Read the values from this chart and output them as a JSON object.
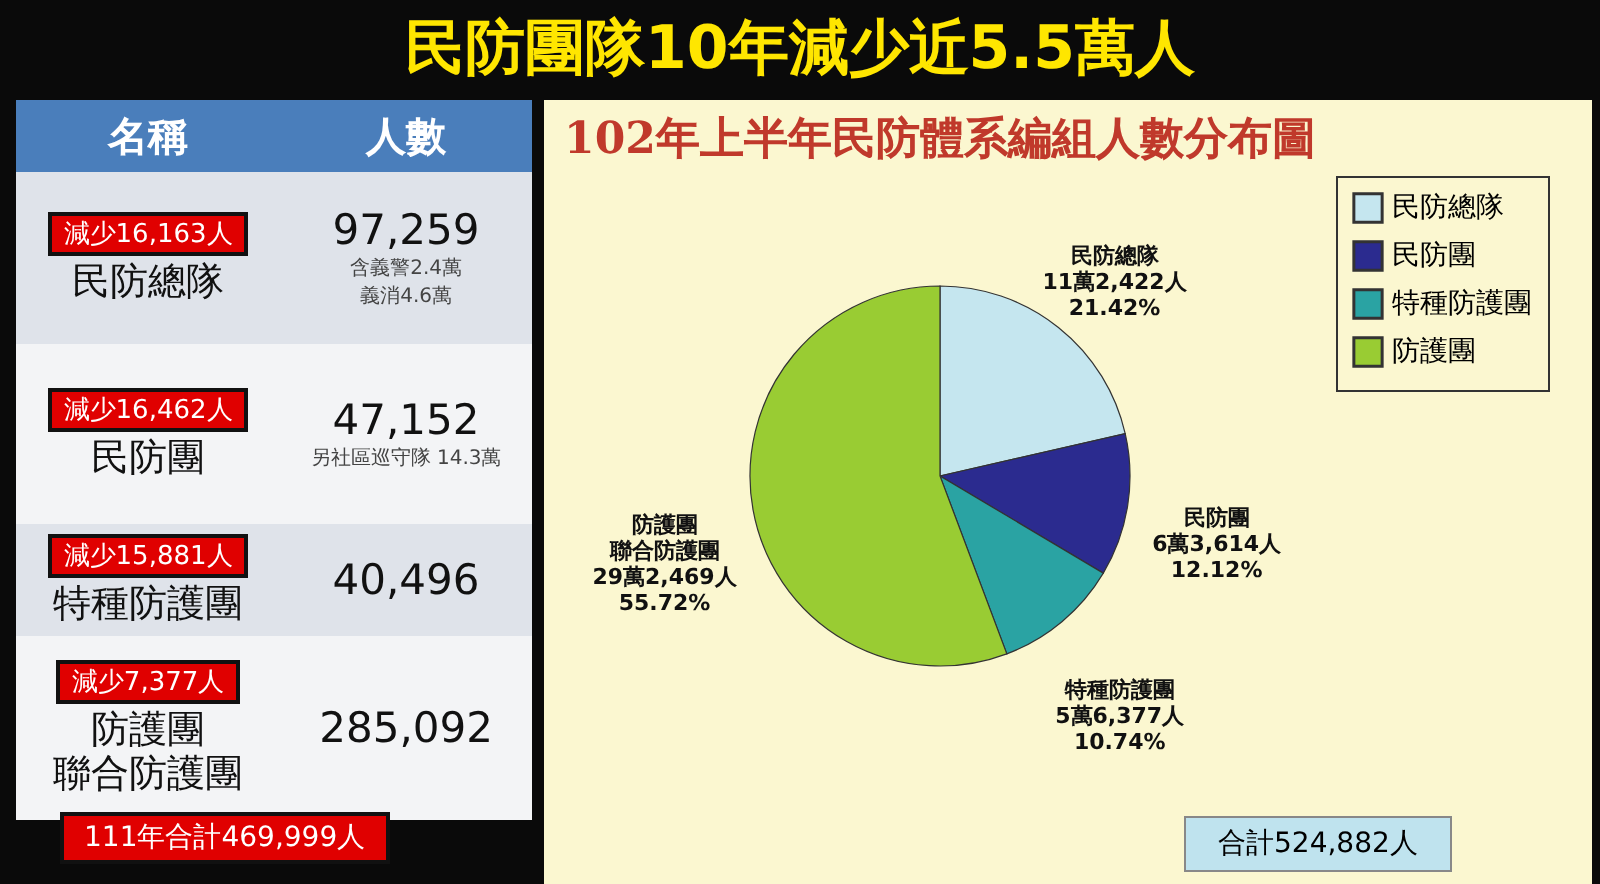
{
  "chart_data": {
    "type": "pie",
    "title": "民防團隊10年減少近5.5萬人",
    "subtitle": "102年上半年民防體系編組人數分布圖",
    "categories": [
      "民防總隊",
      "民防團",
      "特種防護團",
      "防護團"
    ],
    "values": [
      21.42,
      12.12,
      10.74,
      55.72
    ],
    "colors": [
      "#c5e6ef",
      "#2b2b8f",
      "#2aa3a3",
      "#99cc33"
    ],
    "value_labels": [
      "11萬2,422人\n21.42%",
      "6萬3,614人\n12.12%",
      "5萬6,377人\n10.74%",
      "29萬2,469人\n55.72%"
    ],
    "legend": "right",
    "annotations": [
      "名稱",
      "人數",
      "減少16,163人",
      "民防總隊",
      "97,259",
      "含義警2.4萬",
      "義消4.6萬",
      "減少16,462人",
      "民防團",
      "47,152",
      "另社區巡守隊 14.3萬",
      "減少15,881人",
      "特種防護團",
      "40,496",
      "減少7,377人",
      "防護團",
      "聯合防護團",
      "285,092",
      "111年合計469,999人",
      "合計524,882人",
      {
        "text": "聯合防護團",
        "x": "防護團"
      }
    ]
  }
}
